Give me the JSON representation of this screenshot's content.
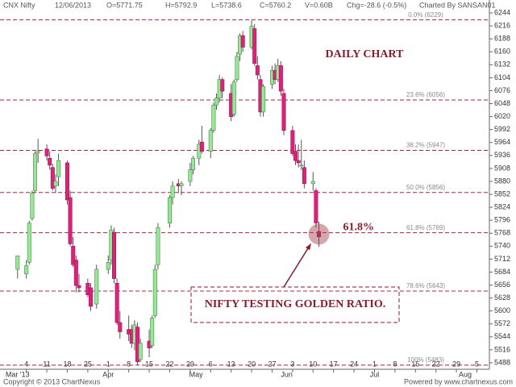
{
  "header": {
    "symbol": "CNX Nifty",
    "date": "12/06/2013",
    "open": "O=5771.75",
    "high": "H=5792.9",
    "low": "L=5738.6",
    "close": "C=5760.2",
    "volume": "V=0.60B",
    "change": "Chg=-28.6 (-0.5%)",
    "charted_by": "Charted By SANSAN01"
  },
  "footer": {
    "copyright": "Copyright © 2013 ChartNexus",
    "powered": "Powered by www.chartnexus.com"
  },
  "chart_data": {
    "type": "candlestick",
    "up_color": "#98e698",
    "down_color": "#e0217a",
    "x": [
      "2013-03-01",
      "2013-03-04",
      "2013-03-05",
      "2013-03-06",
      "2013-03-07",
      "2013-03-08",
      "2013-03-11",
      "2013-03-12",
      "2013-03-13",
      "2013-03-14",
      "2013-03-15",
      "2013-03-18",
      "2013-03-19",
      "2013-03-20",
      "2013-03-21",
      "2013-03-22",
      "2013-03-25",
      "2013-03-26",
      "2013-03-28",
      "2013-04-01",
      "2013-04-02",
      "2013-04-03",
      "2013-04-04",
      "2013-04-05",
      "2013-04-08",
      "2013-04-09",
      "2013-04-10",
      "2013-04-11",
      "2013-04-12",
      "2013-04-15",
      "2013-04-16",
      "2013-04-17",
      "2013-04-18",
      "2013-04-22",
      "2013-04-23",
      "2013-04-25",
      "2013-04-26",
      "2013-04-29",
      "2013-04-30",
      "2013-05-02",
      "2013-05-03",
      "2013-05-06",
      "2013-05-07",
      "2013-05-08",
      "2013-05-09",
      "2013-05-10",
      "2013-05-13",
      "2013-05-14",
      "2013-05-15",
      "2013-05-16",
      "2013-05-17",
      "2013-05-20",
      "2013-05-21",
      "2013-05-22",
      "2013-05-23",
      "2013-05-24",
      "2013-05-27",
      "2013-05-28",
      "2013-05-29",
      "2013-05-30",
      "2013-05-31",
      "2013-06-03",
      "2013-06-04",
      "2013-06-05",
      "2013-06-06",
      "2013-06-07",
      "2013-06-10",
      "2013-06-11",
      "2013-06-12"
    ],
    "open": [
      5690,
      5680,
      5705,
      5800,
      5860,
      5942,
      5950,
      5930,
      5910,
      5870,
      5890,
      5920,
      5845,
      5740,
      5710,
      5655,
      5660,
      5650,
      5615,
      5690,
      5710,
      5770,
      5660,
      5575,
      5560,
      5560,
      5530,
      5565,
      5495,
      5535,
      5525,
      5590,
      5700,
      5790,
      5845,
      5875,
      5870,
      5880,
      5905,
      5930,
      5965,
      5945,
      5990,
      6045,
      6060,
      6100,
      6070,
      6025,
      6100,
      6155,
      6195,
      6170,
      6210,
      6130,
      6100,
      6030,
      6090,
      6120,
      6100,
      6130,
      6070,
      5990,
      5945,
      5925,
      5915,
      5910,
      5875,
      5860,
      5771.75
    ],
    "high": [
      5720,
      5710,
      5795,
      5860,
      5945,
      5972,
      5960,
      5945,
      5918,
      5895,
      5940,
      5925,
      5860,
      5760,
      5720,
      5680,
      5670,
      5660,
      5700,
      5720,
      5785,
      5780,
      5670,
      5600,
      5590,
      5570,
      5580,
      5575,
      5540,
      5560,
      5590,
      5700,
      5790,
      5850,
      5880,
      5885,
      5880,
      5920,
      5935,
      5970,
      6000,
      5995,
      6050,
      6070,
      6110,
      6105,
      6090,
      6100,
      6160,
      6200,
      6205,
      6229,
      6220,
      6150,
      6110,
      6090,
      6130,
      6135,
      6145,
      6140,
      6080,
      6000,
      5960,
      5960,
      5970,
      5925,
      5900,
      5865,
      5792.9
    ],
    "low": [
      5670,
      5670,
      5700,
      5795,
      5855,
      5920,
      5925,
      5905,
      5860,
      5855,
      5870,
      5830,
      5740,
      5695,
      5640,
      5640,
      5630,
      5600,
      5605,
      5680,
      5700,
      5660,
      5570,
      5540,
      5535,
      5520,
      5515,
      5483,
      5490,
      5500,
      5520,
      5585,
      5690,
      5780,
      5830,
      5855,
      5850,
      5870,
      5895,
      5915,
      5940,
      5930,
      5985,
      6035,
      6050,
      6060,
      6010,
      6020,
      6095,
      6140,
      6160,
      6165,
      6130,
      6100,
      6020,
      6020,
      6080,
      6090,
      6095,
      6065,
      5980,
      5935,
      5915,
      5910,
      5905,
      5865,
      5860,
      5780,
      5738.6
    ],
    "close": [
      5719,
      5698,
      5790,
      5855,
      5940,
      5945,
      5935,
      5915,
      5865,
      5880,
      5925,
      5840,
      5745,
      5700,
      5655,
      5650,
      5635,
      5610,
      5690,
      5705,
      5775,
      5670,
      5575,
      5555,
      5550,
      5530,
      5570,
      5490,
      5530,
      5520,
      5585,
      5690,
      5780,
      5845,
      5870,
      5870,
      5875,
      5905,
      5930,
      5960,
      5945,
      5990,
      6045,
      6060,
      6100,
      6075,
      6020,
      6095,
      6150,
      6195,
      6170,
      6215,
      6135,
      6110,
      6030,
      6085,
      6120,
      6100,
      6130,
      6075,
      5990,
      5940,
      5925,
      5920,
      5915,
      5875,
      5880,
      5790,
      5760.2
    ],
    "xlim": [
      "2013-02-23",
      "2013-08-09"
    ],
    "xticks": [
      {
        "value": "2013-03-04",
        "label": "4"
      },
      {
        "value": "2013-03-11",
        "label": "11"
      },
      {
        "value": "2013-03-18",
        "label": "18"
      },
      {
        "value": "2013-03-25",
        "label": "25"
      },
      {
        "value": "2013-04-01",
        "label": "1"
      },
      {
        "value": "2013-04-08",
        "label": "8"
      },
      {
        "value": "2013-04-15",
        "label": "15"
      },
      {
        "value": "2013-04-22",
        "label": "22"
      },
      {
        "value": "2013-04-29",
        "label": "29"
      },
      {
        "value": "2013-05-06",
        "label": "6"
      },
      {
        "value": "2013-05-13",
        "label": "13"
      },
      {
        "value": "2013-05-20",
        "label": "20"
      },
      {
        "value": "2013-05-27",
        "label": "27"
      },
      {
        "value": "2013-06-03",
        "label": "3"
      },
      {
        "value": "2013-06-10",
        "label": "10"
      },
      {
        "value": "2013-06-17",
        "label": "17"
      },
      {
        "value": "2013-06-24",
        "label": "24"
      },
      {
        "value": "2013-07-01",
        "label": "1"
      },
      {
        "value": "2013-07-08",
        "label": "8"
      },
      {
        "value": "2013-07-15",
        "label": "15"
      },
      {
        "value": "2013-07-22",
        "label": "22"
      },
      {
        "value": "2013-07-29",
        "label": "29"
      },
      {
        "value": "2013-08-05",
        "label": "5"
      }
    ],
    "month_ticks": [
      {
        "value": "2013-03-01",
        "label": "Mar '13"
      },
      {
        "value": "2013-04-01",
        "label": "Apr"
      },
      {
        "value": "2013-05-01",
        "label": "May"
      },
      {
        "value": "2013-06-01",
        "label": "Jun"
      },
      {
        "value": "2013-07-01",
        "label": "Jul"
      },
      {
        "value": "2013-08-01",
        "label": "Aug"
      }
    ],
    "ylim": [
      5474,
      6258
    ],
    "yticks": [
      5488,
      5516,
      5544,
      5572,
      5600,
      5628,
      5656,
      5684,
      5712,
      5740,
      5768,
      5796,
      5824,
      5852,
      5880,
      5908,
      5936,
      5964,
      5992,
      6020,
      6048,
      6076,
      6104,
      6132,
      6160,
      6188,
      6216,
      6244
    ],
    "fib_levels": [
      {
        "value": 6229,
        "label": "0.0% (6229)"
      },
      {
        "value": 6056,
        "label": "23.6% (6056)"
      },
      {
        "value": 5947,
        "label": "38.2% (5947)"
      },
      {
        "value": 5856,
        "label": "50.0% (5856)"
      },
      {
        "value": 5769,
        "label": "61.8% (5769)"
      },
      {
        "value": 5643,
        "label": "78.6% (5643)"
      },
      {
        "value": 5483,
        "label": "100% (5483)"
      }
    ],
    "fib_color": "#a0283c",
    "annotations": {
      "title": "DAILY CHART",
      "ratio": "61.8%",
      "callout": "NIFTY TESTING GOLDEN RATIO."
    }
  }
}
